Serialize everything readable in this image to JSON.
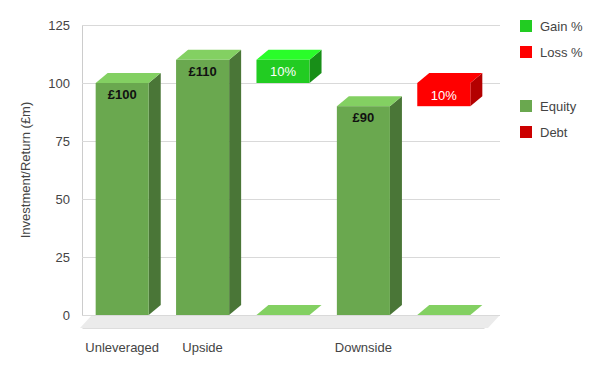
{
  "chart_data": {
    "type": "bar",
    "y_label": "Investment/Return (£m)",
    "categories": [
      "Unleveraged",
      "Upside",
      null,
      "Downside",
      null
    ],
    "series": [
      {
        "name": "Gain %",
        "color": "#22cc22",
        "values": [
          null,
          null,
          10,
          null,
          null
        ],
        "base": [
          null,
          null,
          100,
          null,
          null
        ],
        "value_labels": [
          null,
          null,
          "10%",
          null,
          null
        ]
      },
      {
        "name": "Loss %",
        "color": "#ff0000",
        "values": [
          null,
          null,
          null,
          null,
          10
        ],
        "base": [
          null,
          null,
          null,
          null,
          90
        ],
        "value_labels": [
          null,
          null,
          null,
          null,
          "10%"
        ]
      },
      {
        "name": "Equity",
        "color": "#6aa84f",
        "values": [
          100,
          110,
          0,
          90,
          0
        ],
        "value_labels": [
          "£100",
          "£110",
          null,
          "£90",
          null
        ]
      },
      {
        "name": "Debt",
        "color": "#cc0000",
        "values": [
          null,
          null,
          null,
          null,
          null
        ]
      }
    ],
    "ylim": [
      0,
      125
    ],
    "yticks": [
      0,
      25,
      50,
      75,
      100,
      125
    ],
    "grid": true,
    "data_labels": true,
    "legend": "right"
  }
}
